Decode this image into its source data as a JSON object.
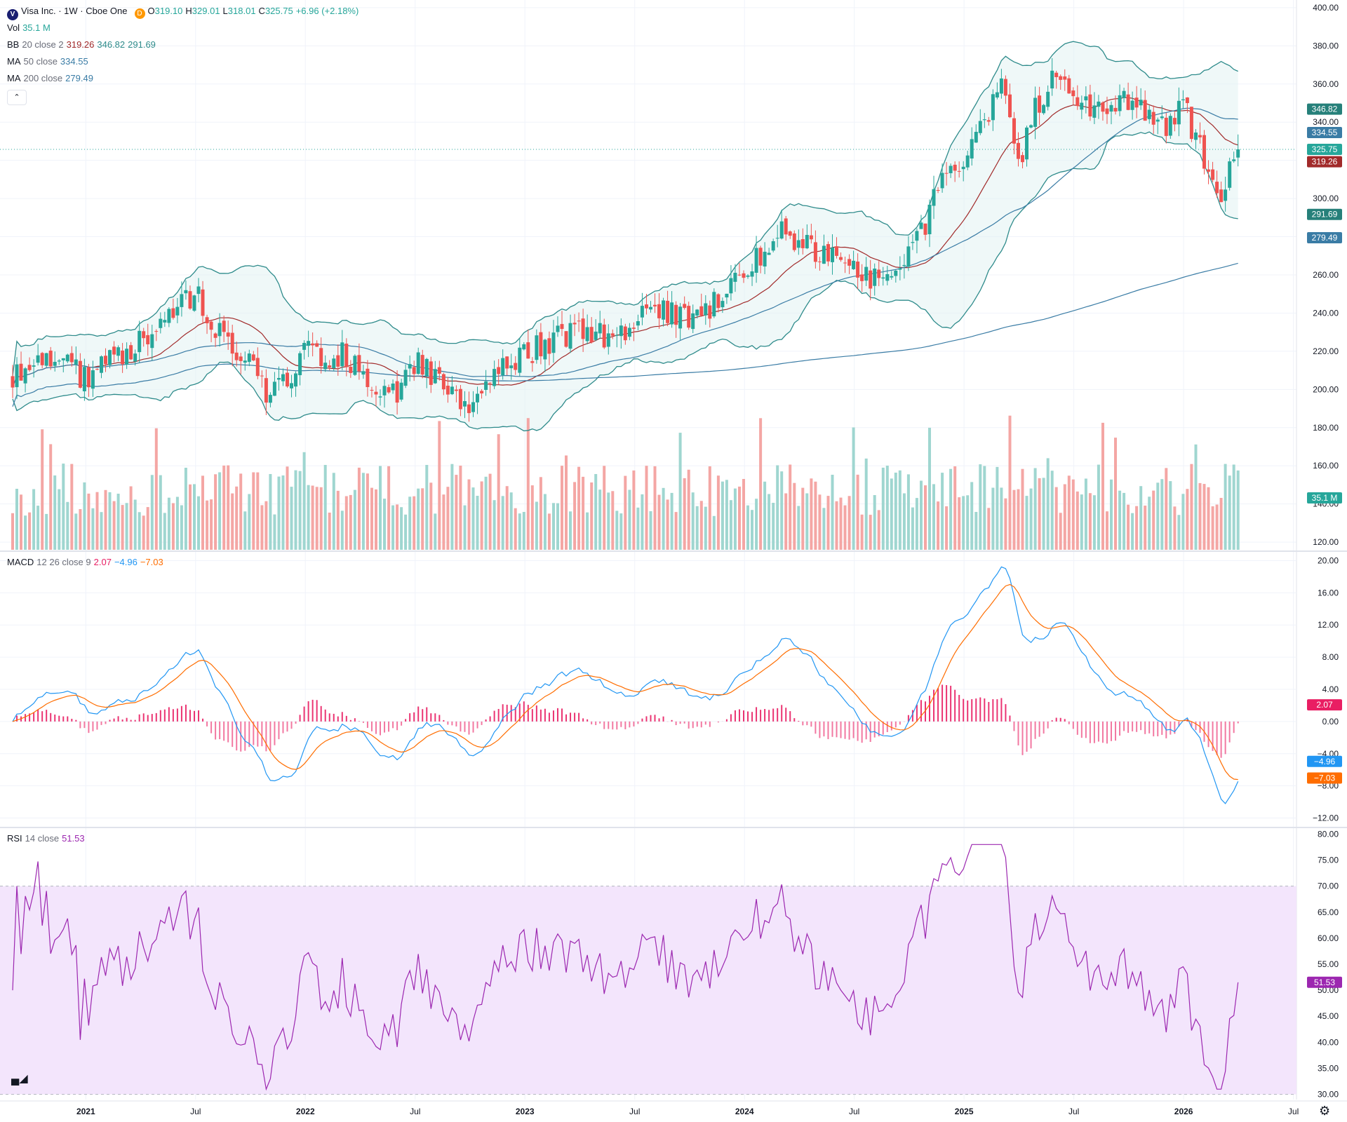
{
  "header": {
    "symbol_badge": "V",
    "title": "Visa Inc. · 1W · Cboe One",
    "delay_badge": "D",
    "ohlc": {
      "o_label": "O",
      "o": "319.10",
      "h_label": "H",
      "h": "329.01",
      "l_label": "L",
      "l": "318.01",
      "c_label": "C",
      "c": "325.75",
      "change": "+6.96 (+2.18%)"
    }
  },
  "indicators": {
    "vol": {
      "name": "Vol",
      "value": "35.1 M"
    },
    "bb": {
      "name": "BB",
      "params": "20 close 2",
      "basis": "319.26",
      "upper": "346.82",
      "lower": "291.69"
    },
    "ma50": {
      "name": "MA",
      "params": "50 close",
      "value": "334.55"
    },
    "ma200": {
      "name": "MA",
      "params": "200 close",
      "value": "279.49"
    },
    "macd": {
      "name": "MACD",
      "params": "12 26 close 9",
      "hist": "2.07",
      "macd": "−4.96",
      "signal": "−7.03"
    },
    "rsi": {
      "name": "RSI",
      "params": "14 close",
      "value": "51.53"
    }
  },
  "collapse_icon": "chevron-up-icon",
  "colors": {
    "up": "#26a69a",
    "down": "#ef5350",
    "bb": "#2e8b8b",
    "bb_basis": "#a12a2a",
    "ma50": "#3a7ca5",
    "ma200": "#3a7ca5",
    "macd": "#2196f3",
    "signal": "#ff6d00",
    "hist": "#e91e63",
    "rsi": "#9c27b0",
    "rsi_band": "#f3e5fc"
  },
  "chart_data": [
    {
      "type": "candlestick",
      "title": "Visa Inc. · 1W · Cboe One",
      "price_axis_ticks": [
        "400.00",
        "380.00",
        "360.00",
        "340.00",
        "320.00",
        "300.00",
        "280.00",
        "260.00",
        "240.00",
        "220.00",
        "200.00",
        "180.00",
        "160.00",
        "140.00",
        "120.00"
      ],
      "ylim": [
        116,
        404
      ],
      "time_labels": [
        "2021",
        "Jul",
        "2022",
        "Jul",
        "2023",
        "Jul",
        "2024",
        "Jul",
        "2025",
        "Jul",
        "2026",
        "Jul"
      ],
      "anchors": {
        "dates": [
          "2020-09",
          "2020-10",
          "2020-11",
          "2021-01",
          "2021-03",
          "2021-05",
          "2021-07",
          "2021-08",
          "2021-09",
          "2021-10",
          "2021-11",
          "2021-12",
          "2022-01",
          "2022-02",
          "2022-03",
          "2022-05",
          "2022-06",
          "2022-07",
          "2022-08",
          "2022-09",
          "2022-10",
          "2022-11",
          "2022-12",
          "2023-02",
          "2023-04",
          "2023-06",
          "2023-08",
          "2023-10",
          "2023-11",
          "2024-01",
          "2024-03",
          "2024-05",
          "2024-07",
          "2024-08",
          "2024-10",
          "2024-11",
          "2024-12",
          "2025-01",
          "2025-02",
          "2025-03",
          "2025-04",
          "2025-05",
          "2025-06",
          "2025-08",
          "2025-10",
          "2025-11",
          "2025-12",
          "2026-01",
          "2026-02",
          "2026-03",
          "2026-04"
        ],
        "close": [
          208,
          212,
          218,
          206,
          218,
          232,
          250,
          232,
          220,
          215,
          196,
          204,
          222,
          212,
          218,
          202,
          198,
          214,
          208,
          196,
          184,
          208,
          212,
          224,
          232,
          226,
          244,
          236,
          242,
          262,
          284,
          270,
          266,
          256,
          270,
          290,
          314,
          316,
          338,
          360,
          320,
          350,
          364,
          344,
          352,
          342,
          336,
          348,
          324,
          300,
          326
        ]
      },
      "last_price": "325.75",
      "axis_labels": {
        "bb_upper": "346.82",
        "ma50": "334.55",
        "last": "325.75",
        "bb_basis": "319.26",
        "bb_lower": "291.69",
        "ma200": "279.49",
        "vol": "35.1 M"
      }
    },
    {
      "type": "line",
      "title": "MACD 12 26 close 9",
      "axis_ticks": [
        "20.00",
        "16.00",
        "12.00",
        "8.00",
        "4.00",
        "0.00",
        "−4.00",
        "−8.00",
        "−12.00"
      ],
      "ylim": [
        -13,
        21
      ],
      "axis_labels": {
        "hist": "2.07",
        "macd": "−4.96",
        "signal": "−7.03"
      }
    },
    {
      "type": "line",
      "title": "RSI 14 close",
      "axis_ticks": [
        "80.00",
        "75.00",
        "70.00",
        "65.00",
        "60.00",
        "55.00",
        "50.00",
        "45.00",
        "40.00",
        "35.00",
        "30.00"
      ],
      "ylim": [
        29,
        81
      ],
      "band": [
        30,
        70
      ],
      "axis_labels": {
        "rsi": "51.53"
      }
    }
  ]
}
